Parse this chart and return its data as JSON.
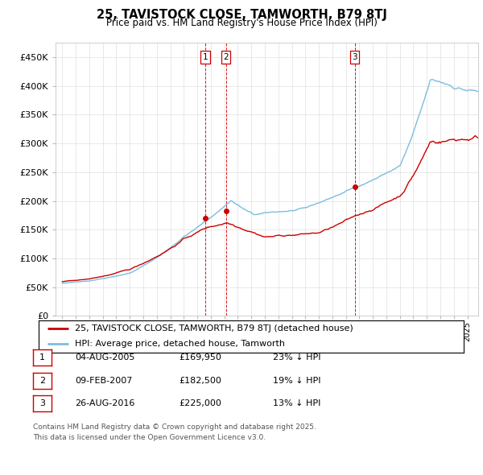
{
  "title": "25, TAVISTOCK CLOSE, TAMWORTH, B79 8TJ",
  "subtitle": "Price paid vs. HM Land Registry's House Price Index (HPI)",
  "legend_line1": "25, TAVISTOCK CLOSE, TAMWORTH, B79 8TJ (detached house)",
  "legend_line2": "HPI: Average price, detached house, Tamworth",
  "transactions": [
    {
      "num": 1,
      "date": "04-AUG-2005",
      "price": "£169,950",
      "pct": "23% ↓ HPI",
      "year": 2005.58,
      "value": 169950
    },
    {
      "num": 2,
      "date": "09-FEB-2007",
      "price": "£182,500",
      "pct": "19% ↓ HPI",
      "year": 2007.11,
      "value": 182500
    },
    {
      "num": 3,
      "date": "26-AUG-2016",
      "price": "£225,000",
      "pct": "13% ↓ HPI",
      "year": 2016.65,
      "value": 225000
    }
  ],
  "footer_line1": "Contains HM Land Registry data © Crown copyright and database right 2025.",
  "footer_line2": "This data is licensed under the Open Government Licence v3.0.",
  "hpi_color": "#7bbde0",
  "price_color": "#cc0000",
  "vline_color": "#cc0000",
  "background_color": "#ffffff",
  "ylim": [
    0,
    475000
  ],
  "xlim_start": 1994.5,
  "xlim_end": 2025.8,
  "yticks": [
    0,
    50000,
    100000,
    150000,
    200000,
    250000,
    300000,
    350000,
    400000,
    450000
  ],
  "ytick_labels": [
    "£0",
    "£50K",
    "£100K",
    "£150K",
    "£200K",
    "£250K",
    "£300K",
    "£350K",
    "£400K",
    "£450K"
  ]
}
